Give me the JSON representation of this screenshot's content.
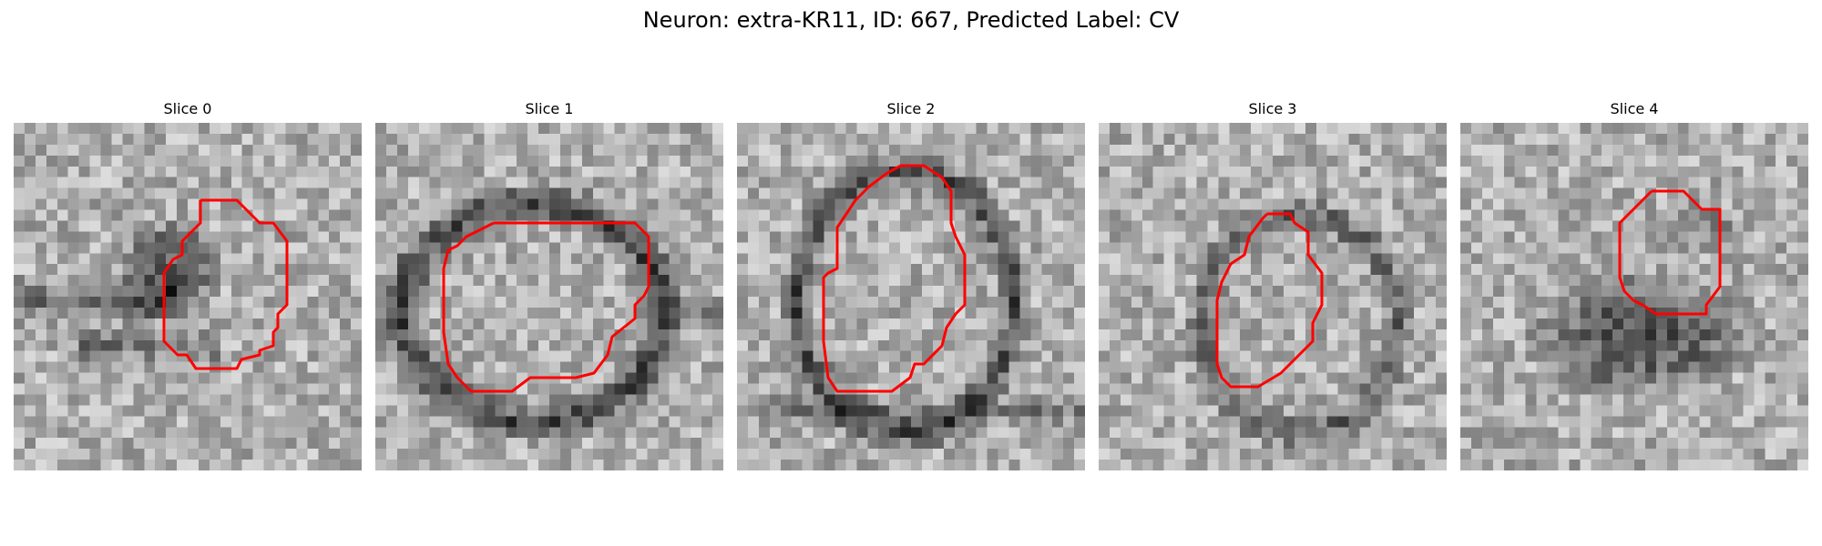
{
  "title": "Neuron: extra-KR11, ID: 667, Predicted Label: CV",
  "contour_color": "#ff0000",
  "colormap": "gray",
  "panels": [
    {
      "label": "Slice 0"
    },
    {
      "label": "Slice 1"
    },
    {
      "label": "Slice 2"
    },
    {
      "label": "Slice 3"
    },
    {
      "label": "Slice 4"
    }
  ]
}
